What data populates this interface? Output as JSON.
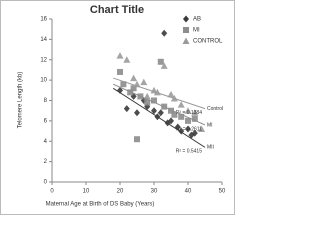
{
  "chart_data": {
    "type": "scatter",
    "title": "Chart Title",
    "x_label": "Maternal Age at Birth of DS Baby (Years)",
    "y_label": "Telomere Length (kb)",
    "xlim": [
      0,
      50
    ],
    "xticks": [
      0,
      10,
      20,
      30,
      40,
      50
    ],
    "ylim": [
      0,
      16
    ],
    "yticks": [
      0,
      2,
      4,
      6,
      8,
      10,
      12,
      14,
      16
    ],
    "legend": "top-right",
    "series": [
      {
        "name": "AB",
        "color": "#3a3a3a",
        "marker": "diamond",
        "x": [
          33,
          20,
          22,
          24,
          25,
          27,
          28,
          30,
          31,
          32,
          34,
          35,
          37,
          38,
          40,
          41,
          42
        ],
        "y": [
          14.6,
          9,
          7.2,
          8.4,
          6.8,
          8,
          7.4,
          7,
          6.4,
          6.8,
          5.8,
          6,
          5.4,
          5,
          5.2,
          4.6,
          4.8
        ]
      },
      {
        "name": "MI",
        "color": "#8c8c8c",
        "marker": "square",
        "x": [
          20,
          21,
          23,
          24,
          25,
          26,
          28,
          30,
          32,
          33,
          35,
          36,
          38,
          40,
          42
        ],
        "y": [
          10.8,
          9.6,
          8.8,
          9.2,
          4.2,
          8.4,
          7.8,
          8,
          11.8,
          7.4,
          7,
          6.6,
          6.4,
          6,
          6.2
        ]
      },
      {
        "name": "CONTROL",
        "color": "#9a9a9a",
        "marker": "triangle",
        "x": [
          20,
          22,
          24,
          25,
          27,
          28,
          30,
          31,
          33,
          35,
          36,
          38,
          40,
          42,
          44
        ],
        "y": [
          12.4,
          12,
          10.2,
          9.6,
          9.8,
          8.4,
          9,
          8.8,
          11.4,
          8.6,
          8.2,
          7.6,
          7,
          6.8,
          5.2
        ]
      }
    ],
    "trendlines": [
      {
        "label": "Control",
        "r2": "R² = 0.1384",
        "color": "#9a9a9a",
        "x": [
          18,
          45
        ],
        "y": [
          10.2,
          7.2
        ]
      },
      {
        "label": "MI",
        "r2": "R² = 0.2611",
        "color": "#8c8c8c",
        "x": [
          18,
          45
        ],
        "y": [
          9.6,
          5.6
        ]
      },
      {
        "label": "MII",
        "r2": "R² = 0.5415",
        "color": "#3a3a3a",
        "x": [
          18,
          45
        ],
        "y": [
          9.2,
          3.4
        ]
      }
    ]
  }
}
